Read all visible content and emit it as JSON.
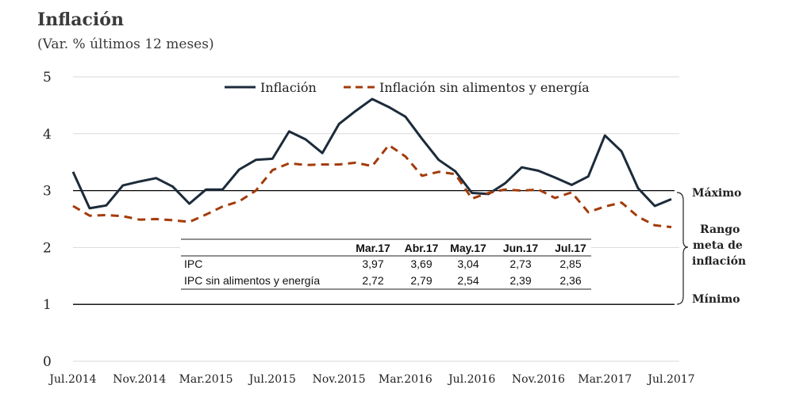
{
  "title": "Inflación",
  "subtitle": "(Var. % últimos 12 meses)",
  "legend": {
    "series1": "Inflación",
    "series2": "Inflación sin alimentos y energía"
  },
  "side_labels": {
    "max": "Máximo",
    "range": [
      "Rango",
      "meta de",
      "inflación"
    ],
    "min": "Mínimo"
  },
  "table": {
    "headers": [
      "Mar.17",
      "Abr.17",
      "May.17",
      "Jun.17",
      "Jul.17"
    ],
    "rows": [
      {
        "label": "IPC",
        "values": [
          "3,97",
          "3,69",
          "3,04",
          "2,73",
          "2,85"
        ]
      },
      {
        "label": "IPC sin alimentos y energía",
        "values": [
          "2,72",
          "2,79",
          "2,54",
          "2,39",
          "2,36"
        ]
      }
    ]
  },
  "colors": {
    "inflacion": "#1c2b3a",
    "subyacente": "#a33b0a",
    "grid": "#d9d9d9",
    "band": "#000000"
  },
  "chart_data": {
    "type": "line",
    "x_tick_labels": [
      "Jul.2014",
      "Nov.2014",
      "Mar.2015",
      "Jul.2015",
      "Nov.2015",
      "Mar.2016",
      "Jul.2016",
      "Nov.2016",
      "Mar.2017",
      "Jul.2017"
    ],
    "x": [
      "Jul.2014",
      "Ago.2014",
      "Sep.2014",
      "Oct.2014",
      "Nov.2014",
      "Dic.2014",
      "Ene.2015",
      "Feb.2015",
      "Mar.2015",
      "Abr.2015",
      "May.2015",
      "Jun.2015",
      "Jul.2015",
      "Ago.2015",
      "Sep.2015",
      "Oct.2015",
      "Nov.2015",
      "Dic.2015",
      "Ene.2016",
      "Feb.2016",
      "Mar.2016",
      "Abr.2016",
      "May.2016",
      "Jun.2016",
      "Jul.2016",
      "Ago.2016",
      "Sep.2016",
      "Oct.2016",
      "Nov.2016",
      "Dic.2016",
      "Ene.2017",
      "Feb.2017",
      "Mar.2017",
      "Abr.2017",
      "May.2017",
      "Jun.2017",
      "Jul.2017"
    ],
    "series": [
      {
        "name": "Inflación",
        "style": "solid",
        "values": [
          3.33,
          2.69,
          2.74,
          3.09,
          3.16,
          3.22,
          3.07,
          2.77,
          3.02,
          3.02,
          3.37,
          3.54,
          3.56,
          4.04,
          3.9,
          3.66,
          4.17,
          4.4,
          4.61,
          4.47,
          4.3,
          3.91,
          3.54,
          3.34,
          2.96,
          2.94,
          3.13,
          3.41,
          3.35,
          3.23,
          3.1,
          3.25,
          3.97,
          3.69,
          3.04,
          2.73,
          2.85
        ]
      },
      {
        "name": "Inflación sin alimentos y energía",
        "style": "dashed",
        "values": [
          2.73,
          2.56,
          2.57,
          2.55,
          2.49,
          2.5,
          2.48,
          2.45,
          2.58,
          2.72,
          2.81,
          3.0,
          3.36,
          3.48,
          3.45,
          3.46,
          3.46,
          3.49,
          3.43,
          3.8,
          3.6,
          3.26,
          3.33,
          3.29,
          2.86,
          2.96,
          3.02,
          3.0,
          3.02,
          2.87,
          2.97,
          2.62,
          2.72,
          2.79,
          2.54,
          2.39,
          2.36
        ]
      }
    ],
    "ylim": [
      0,
      5
    ],
    "y_ticks": [
      0,
      1,
      2,
      3,
      4,
      5
    ],
    "target_band": [
      1,
      3
    ],
    "grid": true,
    "legend_position": "top"
  }
}
